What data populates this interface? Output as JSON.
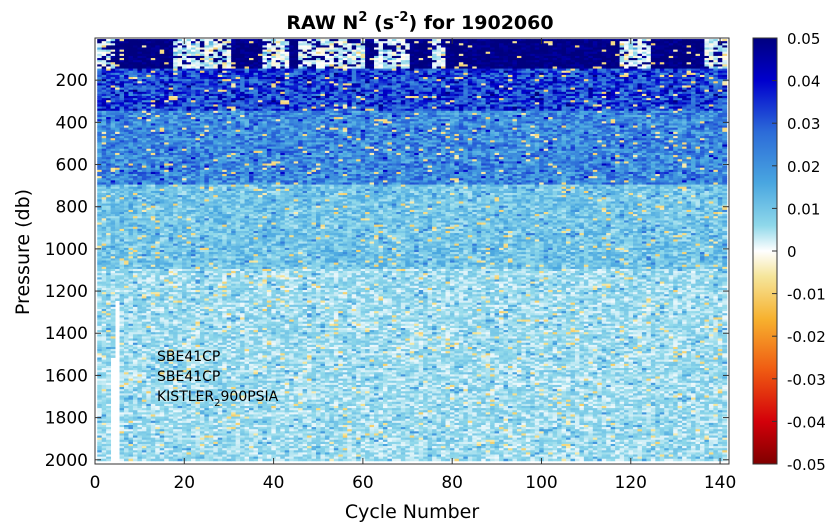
{
  "chart_data": {
    "type": "heatmap",
    "title_main": "RAW N",
    "title_sup1": "2",
    "title_paren_open": " (s",
    "title_sup2": "-2",
    "title_paren_close": ") for 1902060",
    "xlabel": "Cycle Number",
    "ylabel": "Pressure (db)",
    "xlim": [
      0,
      142
    ],
    "ylim": [
      0,
      2020
    ],
    "y_reversed": true,
    "x_ticks": [
      "0",
      "20",
      "40",
      "60",
      "80",
      "100",
      "120",
      "140"
    ],
    "x_tick_values": [
      0,
      20,
      40,
      60,
      80,
      100,
      120,
      140
    ],
    "y_ticks": [
      "200",
      "400",
      "600",
      "800",
      "1000",
      "1200",
      "1400",
      "1600",
      "1800",
      "2000"
    ],
    "y_tick_values": [
      200,
      400,
      600,
      800,
      1000,
      1200,
      1400,
      1600,
      1800,
      2000
    ],
    "colorbar": {
      "range": [
        -0.05,
        0.05
      ],
      "ticks": [
        "0.05",
        "0.04",
        "0.03",
        "0.02",
        "0.01",
        "0",
        "-0.01",
        "-0.02",
        "-0.03",
        "-0.04",
        "-0.05"
      ],
      "tick_values": [
        0.05,
        0.04,
        0.03,
        0.02,
        0.01,
        0,
        -0.01,
        -0.02,
        -0.03,
        -0.04,
        -0.05
      ],
      "colormap": "jet-like: dark blue (positive) to white (0) to dark red (negative)"
    },
    "annotations": {
      "line1": "SBE41CP",
      "line2": "SBE41CP",
      "line3_pre": "KISTLER",
      "line3_sub": "2",
      "line3_post": "900PSIA"
    },
    "data_summary": {
      "cycles": [
        1,
        141
      ],
      "pressure_range": [
        10,
        2010
      ],
      "note_values": "near-surface layer (≈10–150 db) strongly positive (~0.05) with near-zero patches; 150–700 db mostly 0.01–0.03; below 800 db mostly 0.002–0.01 with scattered noise",
      "near_zero_surface_cycles": [
        [
          0,
          4
        ],
        [
          18,
          30
        ],
        [
          38,
          43
        ],
        [
          46,
          60
        ],
        [
          63,
          70
        ],
        [
          76,
          78
        ],
        [
          118,
          124
        ],
        [
          137,
          141
        ]
      ],
      "gap_cycle_profile": [
        4,
        5
      ]
    }
  }
}
